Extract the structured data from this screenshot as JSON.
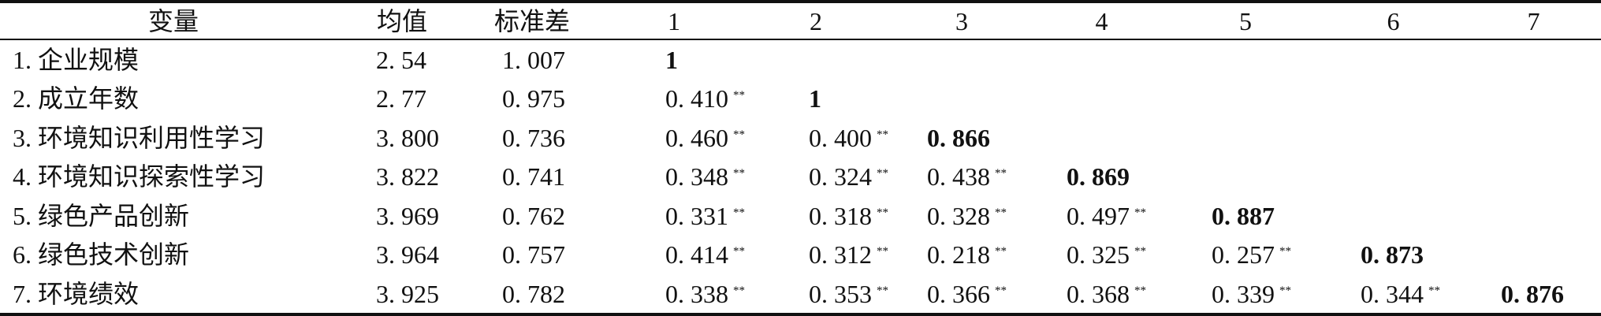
{
  "table": {
    "headers": [
      "变量",
      "均值",
      "标准差",
      "1",
      "2",
      "3",
      "4",
      "5",
      "6",
      "7"
    ],
    "rows": [
      {
        "label": "1. 企业规模",
        "mean": "2. 54",
        "sd": "1. 007",
        "correlations": [
          {
            "value": "1",
            "bold": true
          }
        ]
      },
      {
        "label": "2. 成立年数",
        "mean": "2. 77",
        "sd": "0. 975",
        "correlations": [
          {
            "value": "0. 410",
            "sig": "**"
          },
          {
            "value": "1",
            "bold": true
          }
        ]
      },
      {
        "label": "3. 环境知识利用性学习",
        "mean": "3. 800",
        "sd": "0. 736",
        "correlations": [
          {
            "value": "0. 460",
            "sig": "**"
          },
          {
            "value": "0. 400",
            "sig": "**"
          },
          {
            "value": "0. 866",
            "bold": true
          }
        ]
      },
      {
        "label": "4. 环境知识探索性学习",
        "mean": "3. 822",
        "sd": "0. 741",
        "correlations": [
          {
            "value": "0. 348",
            "sig": "**"
          },
          {
            "value": "0. 324",
            "sig": "**"
          },
          {
            "value": "0. 438",
            "sig": "**"
          },
          {
            "value": "0. 869",
            "bold": true
          }
        ]
      },
      {
        "label": "5. 绿色产品创新",
        "mean": "3. 969",
        "sd": "0. 762",
        "correlations": [
          {
            "value": "0. 331",
            "sig": "**"
          },
          {
            "value": "0. 318",
            "sig": "**"
          },
          {
            "value": "0. 328",
            "sig": "**"
          },
          {
            "value": "0. 497",
            "sig": "**"
          },
          {
            "value": "0. 887",
            "bold": true
          }
        ]
      },
      {
        "label": "6. 绿色技术创新",
        "mean": "3. 964",
        "sd": "0. 757",
        "correlations": [
          {
            "value": "0. 414",
            "sig": "**"
          },
          {
            "value": "0. 312",
            "sig": "**"
          },
          {
            "value": "0. 218",
            "sig": "**"
          },
          {
            "value": "0. 325",
            "sig": "**"
          },
          {
            "value": "0. 257",
            "sig": "**"
          },
          {
            "value": "0. 873",
            "bold": true
          }
        ]
      },
      {
        "label": "7. 环境绩效",
        "mean": "3. 925",
        "sd": "0. 782",
        "correlations": [
          {
            "value": "0. 338",
            "sig": "**"
          },
          {
            "value": "0. 353",
            "sig": "**"
          },
          {
            "value": "0. 366",
            "sig": "**"
          },
          {
            "value": "0. 368",
            "sig": "**"
          },
          {
            "value": "0. 339",
            "sig": "**"
          },
          {
            "value": "0. 344",
            "sig": "**"
          },
          {
            "value": "0. 876",
            "bold": true
          }
        ]
      }
    ]
  }
}
